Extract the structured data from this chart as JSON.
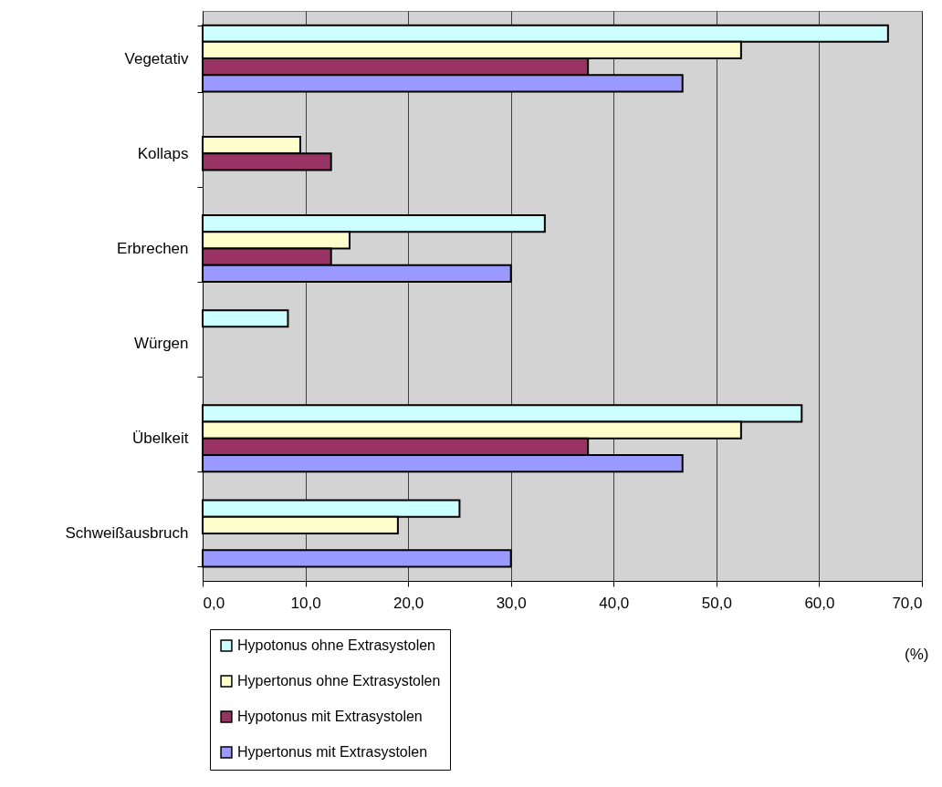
{
  "chart_data": {
    "type": "bar",
    "orientation": "horizontal",
    "xlabel": "(%)",
    "categories": [
      "Vegetativ",
      "Kollaps",
      "Erbrechen",
      "Würgen",
      "Übelkeit",
      "Schweißausbruch"
    ],
    "series": [
      {
        "name": "Hypotonus ohne Extrasystolen",
        "color": "#ccffff",
        "values": [
          66.7,
          null,
          33.3,
          8.3,
          58.3,
          25.0
        ]
      },
      {
        "name": "Hypertonus ohne Extrasystolen",
        "color": "#ffffcc",
        "values": [
          52.4,
          9.5,
          14.3,
          null,
          52.4,
          19.0
        ]
      },
      {
        "name": "Hypotonus mit Extrasystolen",
        "color": "#993366",
        "values": [
          37.5,
          12.5,
          12.5,
          null,
          37.5,
          null
        ]
      },
      {
        "name": "Hypertonus mit Extrasystolen",
        "color": "#9999ff",
        "values": [
          46.7,
          null,
          30.0,
          null,
          46.7,
          30.0
        ]
      }
    ],
    "xlim": [
      0,
      70
    ],
    "xticks": [
      {
        "value": 0,
        "label": "0,0"
      },
      {
        "value": 10,
        "label": "10,0"
      },
      {
        "value": 20,
        "label": "20,0"
      },
      {
        "value": 30,
        "label": "30,0"
      },
      {
        "value": 40,
        "label": "40,0"
      },
      {
        "value": 50,
        "label": "50,0"
      },
      {
        "value": 60,
        "label": "60,0"
      },
      {
        "value": 70,
        "label": "70,0"
      }
    ],
    "grid": "x",
    "legend": "bottom left"
  }
}
